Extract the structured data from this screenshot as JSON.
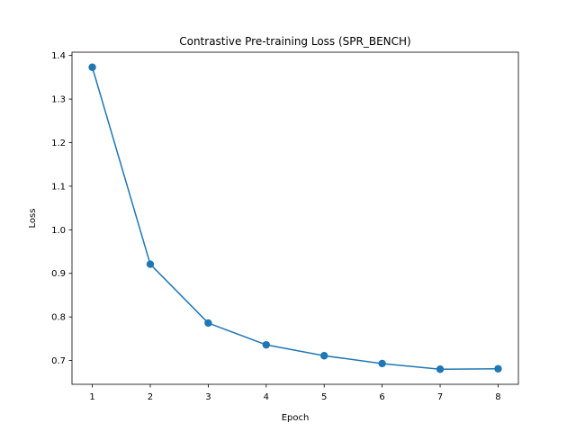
{
  "chart_data": {
    "type": "line",
    "title": "Contrastive Pre-training Loss (SPR_BENCH)",
    "xlabel": "Epoch",
    "ylabel": "Loss",
    "x": [
      1,
      2,
      3,
      4,
      5,
      6,
      7,
      8
    ],
    "series": [
      {
        "values": [
          1.373,
          0.921,
          0.786,
          0.736,
          0.711,
          0.693,
          0.68,
          0.681
        ],
        "color": "#1f77b4",
        "marker": "circle"
      }
    ],
    "xticks": [
      "1",
      "2",
      "3",
      "4",
      "5",
      "6",
      "7",
      "8"
    ],
    "yticks": [
      "0.7",
      "0.8",
      "0.9",
      "1.0",
      "1.1",
      "1.2",
      "1.3",
      "1.4"
    ],
    "xlim": [
      0.65,
      8.35
    ],
    "ylim": [
      0.6454,
      1.4076
    ],
    "grid": false,
    "legend": false
  }
}
